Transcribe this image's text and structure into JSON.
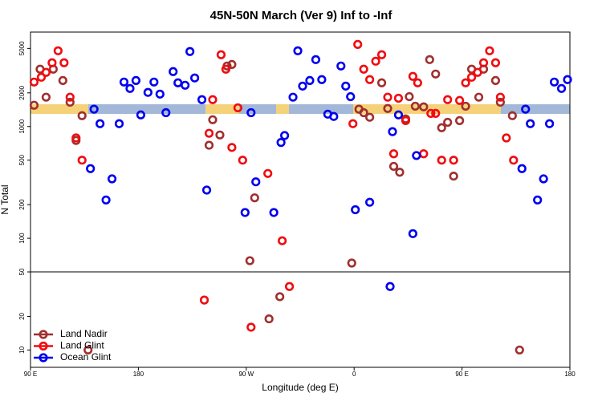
{
  "chart_data": {
    "type": "scatter",
    "title": "45N-50N March (Ver 9)   Inf to -Inf",
    "x_label": "Longitude (deg E)",
    "y_label": "N Total",
    "xlim": [
      90,
      540
    ],
    "xticks": [
      {
        "value": 90,
        "label": "90 E"
      },
      180,
      {
        "value": 270,
        "label": "90 W"
      },
      {
        "value": 360,
        "label": "0"
      },
      {
        "value": 450,
        "label": "90 E"
      },
      {
        "value": 540,
        "label": "180"
      }
    ],
    "ylim": [
      7,
      7000
    ],
    "y_scale": "log",
    "yticks": [
      10,
      20,
      50,
      100,
      200,
      500,
      1000,
      2000,
      5000
    ],
    "panel_break": 50,
    "legend": "bottom-left",
    "series": [
      {
        "name": "Land Nadir",
        "color": "#a0302e",
        "x": [
          93,
          98,
          103,
          109,
          117,
          123,
          128,
          133,
          138,
          242,
          239,
          248,
          254,
          258,
          273,
          277,
          289,
          298,
          358,
          364,
          368,
          373,
          383,
          388,
          393,
          398,
          403,
          406,
          411,
          418,
          423,
          428,
          433,
          438,
          443,
          448,
          453,
          458,
          464,
          468,
          478,
          482,
          492,
          498
        ],
        "values": [
          1550,
          3260,
          1830,
          3260,
          2580,
          1650,
          750,
          1250,
          10,
          1150,
          680,
          840,
          3480,
          3590,
          63,
          230,
          19,
          30,
          60,
          1430,
          1330,
          1210,
          2460,
          1450,
          440,
          390,
          1170,
          1850,
          1520,
          1500,
          3970,
          2950,
          975,
          1090,
          360,
          1130,
          1520,
          3260,
          1830,
          3260,
          2580,
          1650,
          1250,
          10
        ]
      },
      {
        "name": "Land Glint",
        "color": "#f00c10",
        "x": [
          93,
          99,
          103,
          108,
          113,
          118,
          123,
          128,
          133,
          235,
          239,
          242,
          249,
          253,
          258,
          263,
          267,
          274,
          288,
          300,
          306,
          359,
          363,
          368,
          373,
          378,
          383,
          388,
          393,
          397,
          403,
          409,
          413,
          418,
          424,
          428,
          433,
          438,
          443,
          448,
          453,
          458,
          463,
          468,
          473,
          478,
          482,
          487,
          493
        ],
        "values": [
          2500,
          2760,
          3050,
          3720,
          4760,
          3720,
          1830,
          790,
          500,
          28,
          870,
          1740,
          4390,
          3260,
          650,
          1470,
          500,
          16,
          380,
          95,
          37,
          1060,
          5430,
          3260,
          2630,
          3840,
          4390,
          1830,
          570,
          1790,
          1130,
          2810,
          2460,
          570,
          1310,
          1310,
          500,
          1740,
          500,
          1710,
          2460,
          2760,
          3050,
          3720,
          4760,
          3720,
          1830,
          790,
          500
        ]
      },
      {
        "name": "Ocean Glint",
        "color": "#0000f0",
        "x": [
          143,
          140,
          148,
          153,
          158,
          164,
          168,
          173,
          178,
          182,
          188,
          193,
          198,
          203,
          209,
          213,
          219,
          223,
          227,
          233,
          237,
          269,
          274,
          278,
          293,
          299,
          302,
          309,
          313,
          317,
          323,
          328,
          333,
          338,
          343,
          349,
          353,
          357,
          361,
          373,
          390,
          392,
          397,
          409,
          412,
          503,
          500,
          507,
          513,
          518,
          523,
          527,
          533,
          538
        ],
        "values": [
          1430,
          420,
          1060,
          220,
          340,
          1060,
          2500,
          2190,
          2580,
          1270,
          2020,
          2500,
          1950,
          1330,
          3100,
          2460,
          2340,
          4690,
          2720,
          1740,
          270,
          170,
          1330,
          320,
          170,
          720,
          830,
          1830,
          4760,
          2300,
          2580,
          3970,
          2630,
          1290,
          1230,
          3480,
          2300,
          1850,
          180,
          210,
          37,
          900,
          1270,
          110,
          550,
          1430,
          420,
          1060,
          220,
          340,
          1060,
          2500,
          2190,
          2630
        ]
      }
    ]
  }
}
